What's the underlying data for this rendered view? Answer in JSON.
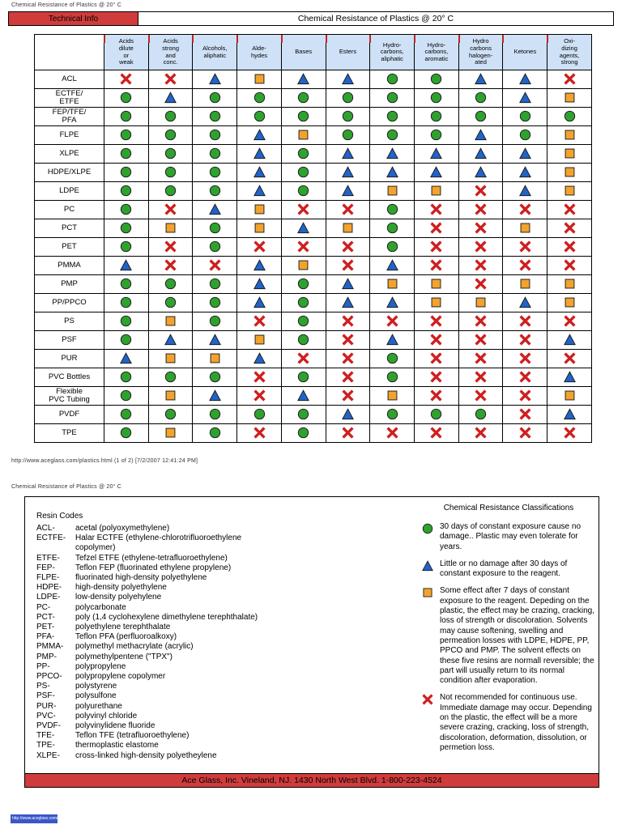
{
  "page": {
    "doc_header": "Chemical Resistance of Plastics @ 20° C",
    "technical_info_label": "Technical Info",
    "title": "Chemical Resistance of Plastics @ 20° C",
    "url_line": "http://www.aceglass.com/plastics.html (1 of 2) [7/2/2007 12:41:24 PM]",
    "page2_header": "Chemical Resistance of Plastics @ 20° C",
    "footer_bar": "Ace Glass, Inc. Vineland, NJ. 1430 North West Blvd. 1-800-223-4524",
    "taskbar_link": "http://www.aceglass.com/plastics.html"
  },
  "colors": {
    "good": "#2fa12f",
    "little": "#2163c8",
    "some": "#f2a32e",
    "bad": "#cf1f1f",
    "header_red": "#d03c3c",
    "table_head_blue": "#cfe1f6"
  },
  "chart_data": {
    "type": "table",
    "title": "Chemical Resistance of Plastics @ 20° C",
    "rating_codes": {
      "G": "green-circle (no damage 30 days)",
      "T": "blue-triangle (little or no damage 30 days)",
      "S": "orange-square (some effect after 7 days)",
      "X": "red-x (not recommended)"
    },
    "columns": [
      "Acids\ndilute\nor\nweak",
      "Acids\nstrong\nand\nconc.",
      "Alcohols,\naliphatic",
      "Alde-\nhydes",
      "Bases",
      "Esters",
      "Hydro-\ncarbons,\naliphatic",
      "Hydro-\ncarbons,\naromatic",
      "Hydro\ncarbons\nhalogen-\nated",
      "Ketones",
      "Oxi-\ndizing\nagents,\nstrong"
    ],
    "rows": [
      {
        "resin": "ACL",
        "ratings": [
          "X",
          "X",
          "T",
          "S",
          "T",
          "T",
          "G",
          "G",
          "T",
          "T",
          "X"
        ]
      },
      {
        "resin": "ECTFE/\nETFE",
        "ratings": [
          "G",
          "T",
          "G",
          "G",
          "G",
          "G",
          "G",
          "G",
          "G",
          "T",
          "S"
        ]
      },
      {
        "resin": "FEP/TFE/\nPFA",
        "ratings": [
          "G",
          "G",
          "G",
          "G",
          "G",
          "G",
          "G",
          "G",
          "G",
          "G",
          "G"
        ]
      },
      {
        "resin": "FLPE",
        "ratings": [
          "G",
          "G",
          "G",
          "T",
          "S",
          "G",
          "G",
          "G",
          "T",
          "G",
          "S"
        ]
      },
      {
        "resin": "XLPE",
        "ratings": [
          "G",
          "G",
          "G",
          "T",
          "G",
          "T",
          "T",
          "T",
          "T",
          "T",
          "S"
        ]
      },
      {
        "resin": "HDPE/XLPE",
        "ratings": [
          "G",
          "G",
          "G",
          "T",
          "G",
          "T",
          "T",
          "T",
          "T",
          "T",
          "S"
        ]
      },
      {
        "resin": "LDPE",
        "ratings": [
          "G",
          "G",
          "G",
          "T",
          "G",
          "T",
          "S",
          "S",
          "X",
          "T",
          "S"
        ]
      },
      {
        "resin": "PC",
        "ratings": [
          "G",
          "X",
          "T",
          "S",
          "X",
          "X",
          "G",
          "X",
          "X",
          "X",
          "X"
        ]
      },
      {
        "resin": "PCT",
        "ratings": [
          "G",
          "S",
          "G",
          "S",
          "T",
          "S",
          "G",
          "X",
          "X",
          "S",
          "X"
        ]
      },
      {
        "resin": "PET",
        "ratings": [
          "G",
          "X",
          "G",
          "X",
          "X",
          "X",
          "G",
          "X",
          "X",
          "X",
          "X"
        ]
      },
      {
        "resin": "PMMA",
        "ratings": [
          "T",
          "X",
          "X",
          "T",
          "S",
          "X",
          "T",
          "X",
          "X",
          "X",
          "X"
        ]
      },
      {
        "resin": "PMP",
        "ratings": [
          "G",
          "G",
          "G",
          "T",
          "G",
          "T",
          "S",
          "S",
          "X",
          "S",
          "S"
        ]
      },
      {
        "resin": "PP/PPCO",
        "ratings": [
          "G",
          "G",
          "G",
          "T",
          "G",
          "T",
          "T",
          "S",
          "S",
          "T",
          "S"
        ]
      },
      {
        "resin": "PS",
        "ratings": [
          "G",
          "S",
          "G",
          "X",
          "G",
          "X",
          "X",
          "X",
          "X",
          "X",
          "X"
        ]
      },
      {
        "resin": "PSF",
        "ratings": [
          "G",
          "T",
          "T",
          "S",
          "G",
          "X",
          "T",
          "X",
          "X",
          "X",
          "T"
        ]
      },
      {
        "resin": "PUR",
        "ratings": [
          "T",
          "S",
          "S",
          "T",
          "X",
          "X",
          "G",
          "X",
          "X",
          "X",
          "X"
        ]
      },
      {
        "resin": "PVC Bottles",
        "ratings": [
          "G",
          "G",
          "G",
          "X",
          "G",
          "X",
          "G",
          "X",
          "X",
          "X",
          "T"
        ]
      },
      {
        "resin": "Flexible\nPVC Tubing",
        "ratings": [
          "G",
          "S",
          "T",
          "X",
          "T",
          "X",
          "S",
          "X",
          "X",
          "X",
          "S"
        ]
      },
      {
        "resin": "PVDF",
        "ratings": [
          "G",
          "G",
          "G",
          "G",
          "G",
          "T",
          "G",
          "G",
          "G",
          "X",
          "T"
        ]
      },
      {
        "resin": "TPE",
        "ratings": [
          "G",
          "S",
          "G",
          "X",
          "G",
          "X",
          "X",
          "X",
          "X",
          "X",
          "X"
        ]
      }
    ]
  },
  "resin_codes": {
    "heading": "Resin Codes",
    "items": [
      {
        "code": "ACL-",
        "desc": "acetal (polyoxymethylene)"
      },
      {
        "code": "ECTFE-",
        "desc": "Halar ECTFE (ethylene-chlorotrifluoroethylene copolymer)"
      },
      {
        "code": "ETFE-",
        "desc": "Tefzel ETFE (ethylene-tetrafluoroethylene)"
      },
      {
        "code": "FEP-",
        "desc": "Teflon FEP (fluorinated ethylene propylene)"
      },
      {
        "code": "FLPE-",
        "desc": "fluorinated high-density polyethylene"
      },
      {
        "code": "HDPE-",
        "desc": "high-density polyethylene"
      },
      {
        "code": "LDPE-",
        "desc": "low-density polyehylene"
      },
      {
        "code": "PC-",
        "desc": "polycarbonate"
      },
      {
        "code": "PCT-",
        "desc": "poly (1,4 cyclohexylene dimethylene terephthalate)"
      },
      {
        "code": "PET-",
        "desc": "polyethylene terephthalate"
      },
      {
        "code": "PFA-",
        "desc": "Teflon PFA (perfluoroalkoxy)"
      },
      {
        "code": "PMMA-",
        "desc": "polymethyl methacrylate (acrylic)"
      },
      {
        "code": "PMP-",
        "desc": "polymethylpentene (\"TPX\")"
      },
      {
        "code": "PP-",
        "desc": "polypropylene"
      },
      {
        "code": "PPCO-",
        "desc": "polypropylene copolymer"
      },
      {
        "code": "PS-",
        "desc": "polystyrene"
      },
      {
        "code": "PSF-",
        "desc": "polysulfone"
      },
      {
        "code": "PUR-",
        "desc": "polyurethane"
      },
      {
        "code": "PVC-",
        "desc": "polyvinyl chloride"
      },
      {
        "code": "PVDF-",
        "desc": "polyvinylidene fluoride"
      },
      {
        "code": "TFE-",
        "desc": "Teflon TFE (tetrafluoroethylene)"
      },
      {
        "code": "TPE-",
        "desc": "thermoplastic elastome"
      },
      {
        "code": "XLPE-",
        "desc": "cross-linked high-density polyetheylene"
      }
    ]
  },
  "legend": {
    "heading": "Chemical Resistance Classifications",
    "items": [
      {
        "symbol": "G",
        "text": "30 days of constant exposure cause no damage.. Plastic may even tolerate for years."
      },
      {
        "symbol": "T",
        "text": "Little or no damage after 30 days of constant exposure to the reagent."
      },
      {
        "symbol": "S",
        "text": "Some effect after 7 days of constant exposure to the reagent. Depeding on the plastic, the effect may be crazing, cracking, loss of strength or discoloration. Solvents may cause softening, swelling and permeation losses with LDPE, HDPE, PP, PPCO and PMP. The solvent effects on these five resins are normall reversible; the part will usually return to its normal condition after evaporation."
      },
      {
        "symbol": "X",
        "text": "Not recommended for continuous use. Immediate damage may occur. Depending on the plastic, the effect will be a more severe crazing, cracking, loss of strength, discoloration, deformation, dissolution, or permetion loss."
      }
    ]
  }
}
